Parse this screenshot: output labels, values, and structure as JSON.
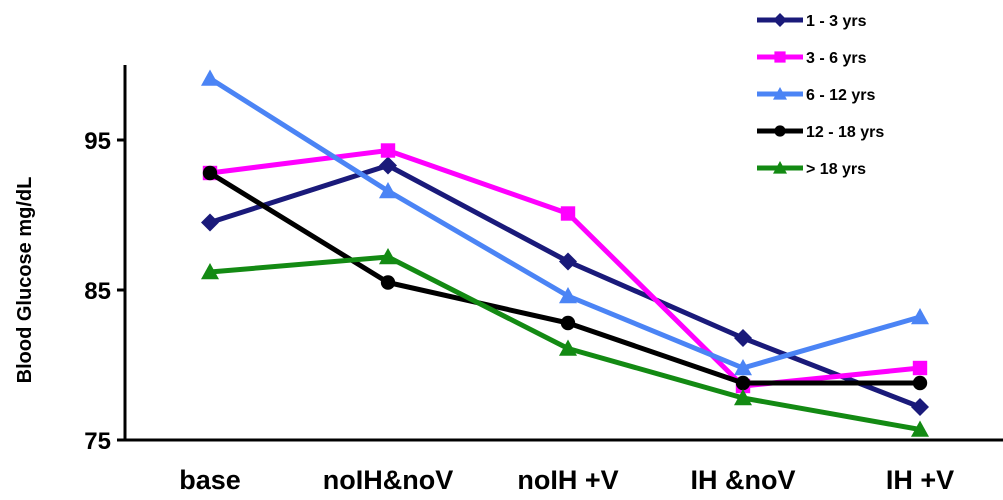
{
  "chart_data": {
    "type": "line",
    "title": "",
    "xlabel": "",
    "ylabel": "Blood  Glucose  mg/dL",
    "ylim": [
      75,
      102
    ],
    "yticks": [
      75,
      85,
      95
    ],
    "categories": [
      "base",
      "noIH&noV",
      "noIH +V",
      "IH &noV",
      "IH +V"
    ],
    "grid": false,
    "legend_position": "top-right",
    "series": [
      {
        "name": "1 - 3 yrs",
        "color": "#1a1a7a",
        "marker": "diamond",
        "values": [
          89.5,
          93.3,
          86.9,
          81.8,
          77.2
        ]
      },
      {
        "name": "3 - 6 yrs",
        "color": "#ff00ff",
        "marker": "square",
        "values": [
          92.8,
          94.3,
          90.1,
          78.6,
          79.8
        ]
      },
      {
        "name": "6 - 12 yrs",
        "color": "#4b84f5",
        "marker": "triangle",
        "values": [
          99.1,
          91.6,
          84.6,
          79.8,
          83.2
        ]
      },
      {
        "name": "12 - 18 yrs",
        "color": "#000000",
        "marker": "circle",
        "values": [
          92.8,
          85.5,
          82.8,
          78.8,
          78.8
        ]
      },
      {
        "name": "> 18 yrs",
        "color": "#138a13",
        "marker": "triangle",
        "values": [
          86.2,
          87.2,
          81.1,
          77.8,
          75.7
        ]
      }
    ]
  }
}
